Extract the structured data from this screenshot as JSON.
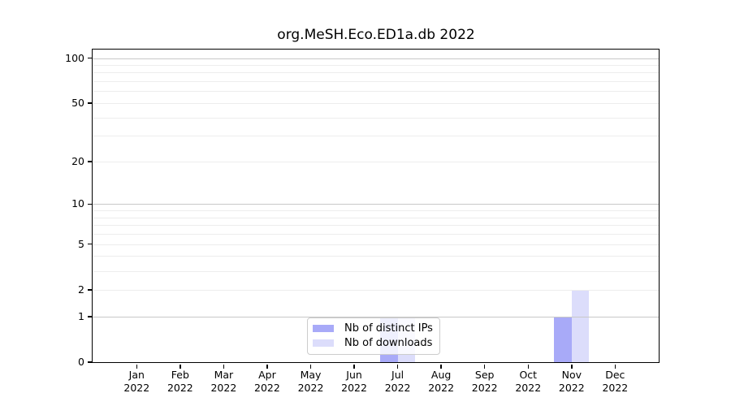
{
  "title": "org.MeSH.Eco.ED1a.db 2022",
  "chart_data": {
    "type": "bar",
    "title": "org.MeSH.Eco.ED1a.db 2022",
    "categories": [
      "Jan 2022",
      "Feb 2022",
      "Mar 2022",
      "Apr 2022",
      "May 2022",
      "Jun 2022",
      "Jul 2022",
      "Aug 2022",
      "Sep 2022",
      "Oct 2022",
      "Nov 2022",
      "Dec 2022"
    ],
    "series": [
      {
        "name": "Nb of distinct IPs",
        "color": "#a8aaf8",
        "values": [
          0,
          0,
          0,
          0,
          0,
          0,
          1,
          0,
          0,
          0,
          1,
          0
        ]
      },
      {
        "name": "Nb of downloads",
        "color": "#dcddfb",
        "values": [
          0,
          0,
          0,
          0,
          0,
          0,
          1,
          0,
          0,
          0,
          2,
          0
        ]
      }
    ],
    "xlabel": "",
    "ylabel": "",
    "yscale": "log1p",
    "ylim": [
      0,
      114
    ],
    "y_ticks": [
      0,
      1,
      2,
      5,
      10,
      20,
      50,
      100
    ],
    "gridlines": {
      "major": [
        1,
        10,
        100
      ],
      "minor": [
        2,
        3,
        4,
        5,
        6,
        7,
        8,
        9,
        20,
        30,
        40,
        50,
        60,
        70,
        80,
        90
      ]
    },
    "grid": true,
    "legend_position": "lower center",
    "axis_color": "#000000",
    "major_grid_color": "#c8c8c8",
    "minor_grid_color": "#ededed",
    "legend_border_color": "#cccccc"
  }
}
